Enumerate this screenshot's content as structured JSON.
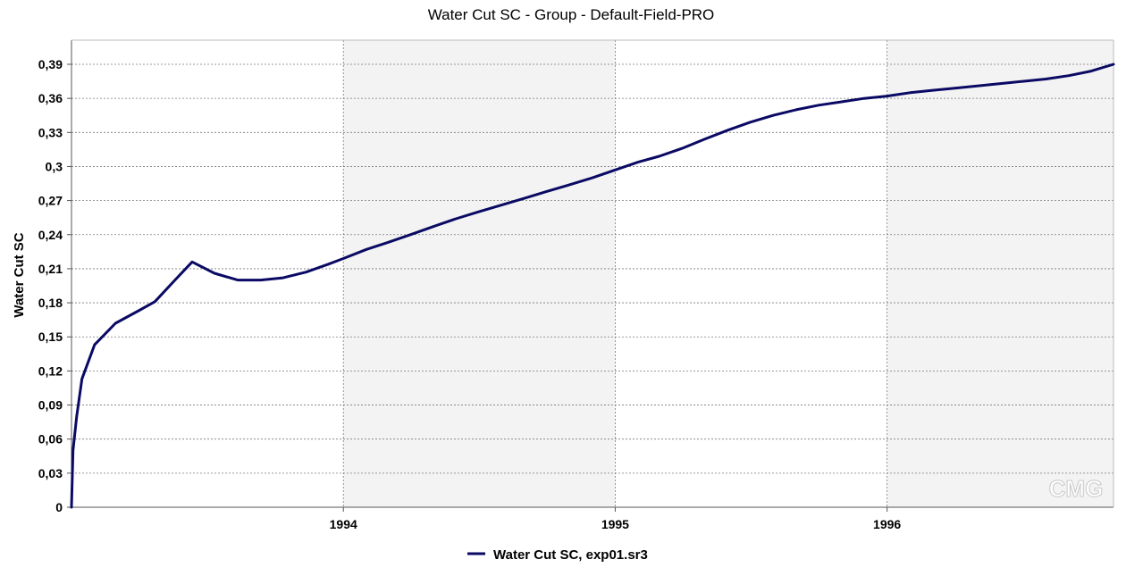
{
  "chart_data": {
    "type": "line",
    "title": "Water Cut SC - Group - Default-Field-PRO",
    "xlabel": "",
    "ylabel": "Water Cut SC",
    "ylim": [
      0,
      0.39
    ],
    "yticks": [
      0,
      0.03,
      0.06,
      0.09,
      0.12,
      0.15,
      0.18,
      0.21,
      0.24,
      0.27,
      0.3,
      0.33,
      0.36,
      0.39
    ],
    "ytick_labels": [
      "0",
      "0,03",
      "0,06",
      "0,09",
      "0,12",
      "0,15",
      "0,18",
      "0,21",
      "0,24",
      "0,27",
      "0,3",
      "0,33",
      "0,36",
      "0,39"
    ],
    "xlim": [
      "1993-01-01",
      "1996-10-31"
    ],
    "xticks": [
      "1994-01-01",
      "1995-01-01",
      "1996-01-01"
    ],
    "xtick_labels": [
      "1994",
      "1995",
      "1996"
    ],
    "grid": true,
    "shaded_bands": [
      {
        "from": "1994-01-01",
        "to": "1995-01-01",
        "color": "#f3f3f3"
      },
      {
        "from": "1996-01-01",
        "to": "1996-10-31",
        "color": "#f3f3f3"
      }
    ],
    "legend_position": "bottom-center",
    "series": [
      {
        "name": "Water Cut SC, exp01.sr3",
        "color": "#0a0a64",
        "x": [
          "1993-01-01",
          "1993-01-03",
          "1993-01-08",
          "1993-01-15",
          "1993-02-01",
          "1993-03-01",
          "1993-04-01",
          "1993-04-23",
          "1993-05-20",
          "1993-06-12",
          "1993-07-12",
          "1993-08-12",
          "1993-09-12",
          "1993-10-12",
          "1993-11-12",
          "1993-12-12",
          "1994-01-01",
          "1994-02-01",
          "1994-03-01",
          "1994-04-01",
          "1994-05-01",
          "1994-06-01",
          "1994-07-01",
          "1994-08-01",
          "1994-09-01",
          "1994-10-01",
          "1994-11-01",
          "1994-12-01",
          "1995-01-01",
          "1995-02-01",
          "1995-03-01",
          "1995-04-01",
          "1995-05-01",
          "1995-06-01",
          "1995-07-01",
          "1995-08-01",
          "1995-09-01",
          "1995-10-01",
          "1995-11-01",
          "1995-12-01",
          "1996-01-01",
          "1996-02-01",
          "1996-03-01",
          "1996-04-01",
          "1996-05-01",
          "1996-06-01",
          "1996-07-01",
          "1996-08-01",
          "1996-09-01",
          "1996-10-01",
          "1996-10-31"
        ],
        "y": [
          0.0,
          0.05,
          0.08,
          0.113,
          0.143,
          0.162,
          0.173,
          0.181,
          0.2,
          0.216,
          0.206,
          0.2,
          0.2,
          0.202,
          0.207,
          0.214,
          0.219,
          0.227,
          0.233,
          0.24,
          0.247,
          0.254,
          0.26,
          0.266,
          0.272,
          0.278,
          0.284,
          0.29,
          0.297,
          0.304,
          0.309,
          0.316,
          0.324,
          0.332,
          0.339,
          0.345,
          0.35,
          0.354,
          0.357,
          0.36,
          0.362,
          0.365,
          0.367,
          0.369,
          0.371,
          0.373,
          0.375,
          0.377,
          0.38,
          0.384,
          0.39
        ]
      }
    ],
    "watermark": "CMG"
  }
}
